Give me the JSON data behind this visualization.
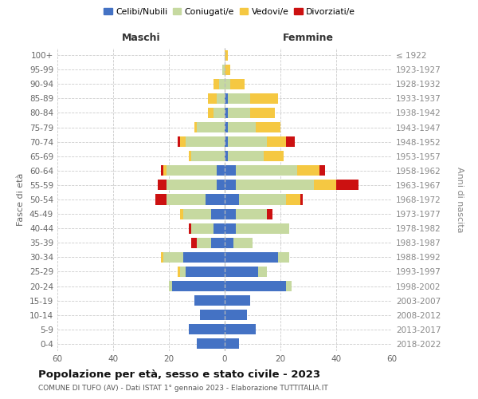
{
  "age_groups": [
    "0-4",
    "5-9",
    "10-14",
    "15-19",
    "20-24",
    "25-29",
    "30-34",
    "35-39",
    "40-44",
    "45-49",
    "50-54",
    "55-59",
    "60-64",
    "65-69",
    "70-74",
    "75-79",
    "80-84",
    "85-89",
    "90-94",
    "95-99",
    "100+"
  ],
  "birth_years": [
    "2018-2022",
    "2013-2017",
    "2008-2012",
    "2003-2007",
    "1998-2002",
    "1993-1997",
    "1988-1992",
    "1983-1987",
    "1978-1982",
    "1973-1977",
    "1968-1972",
    "1963-1967",
    "1958-1962",
    "1953-1957",
    "1948-1952",
    "1943-1947",
    "1938-1942",
    "1933-1937",
    "1928-1932",
    "1923-1927",
    "≤ 1922"
  ],
  "male_celibi": [
    10,
    13,
    9,
    11,
    19,
    14,
    15,
    5,
    4,
    5,
    7,
    3,
    3,
    0,
    0,
    0,
    0,
    0,
    0,
    0,
    0
  ],
  "male_coniugati": [
    0,
    0,
    0,
    0,
    1,
    2,
    7,
    5,
    8,
    10,
    14,
    18,
    18,
    12,
    14,
    10,
    4,
    3,
    2,
    1,
    0
  ],
  "male_vedovi": [
    0,
    0,
    0,
    0,
    0,
    1,
    1,
    0,
    0,
    1,
    0,
    0,
    1,
    1,
    2,
    1,
    2,
    3,
    2,
    0,
    0
  ],
  "male_divorziati": [
    0,
    0,
    0,
    0,
    0,
    0,
    0,
    2,
    1,
    0,
    4,
    3,
    1,
    0,
    1,
    0,
    0,
    0,
    0,
    0,
    0
  ],
  "female_celibi": [
    5,
    11,
    8,
    9,
    22,
    12,
    19,
    3,
    4,
    4,
    5,
    4,
    4,
    1,
    1,
    1,
    1,
    1,
    0,
    0,
    0
  ],
  "female_coniugati": [
    0,
    0,
    0,
    0,
    2,
    3,
    4,
    7,
    19,
    11,
    17,
    28,
    22,
    13,
    14,
    10,
    8,
    8,
    2,
    0,
    0
  ],
  "female_vedovi": [
    0,
    0,
    0,
    0,
    0,
    0,
    0,
    0,
    0,
    0,
    5,
    8,
    8,
    7,
    7,
    9,
    9,
    10,
    5,
    2,
    1
  ],
  "female_divorziati": [
    0,
    0,
    0,
    0,
    0,
    0,
    0,
    0,
    0,
    2,
    1,
    8,
    2,
    0,
    3,
    0,
    0,
    0,
    0,
    0,
    0
  ],
  "color_celibi": "#4472C4",
  "color_coniugati": "#C6D9A0",
  "color_vedovi": "#F5C842",
  "color_divorziati": "#CC1111",
  "legend_labels": [
    "Celibi/Nubili",
    "Coniugati/e",
    "Vedovi/e",
    "Divorziati/e"
  ],
  "label_maschi": "Maschi",
  "label_femmine": "Femmine",
  "ylabel_left": "Fasce di età",
  "ylabel_right": "Anni di nascita",
  "title": "Popolazione per età, sesso e stato civile - 2023",
  "subtitle": "COMUNE DI TUFO (AV) - Dati ISTAT 1° gennaio 2023 - Elaborazione TUTTITALIA.IT",
  "xlim": 60,
  "bg_color": "#ffffff",
  "grid_color": "#cccccc"
}
